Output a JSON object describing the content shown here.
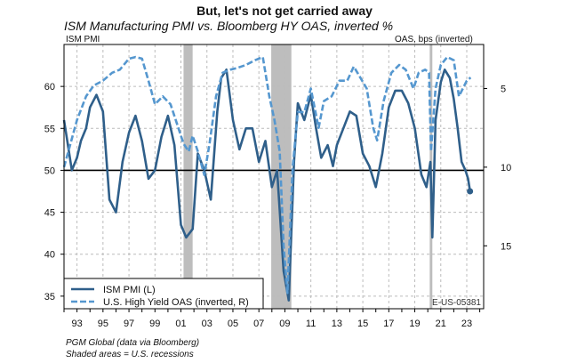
{
  "header": {
    "title": "But, let's not get carried away",
    "subtitle": "ISM Manufacturing PMI vs. Bloomberg HY OAS, inverted %",
    "left_axis_label": "ISM PMI",
    "right_axis_label": "OAS, bps (inverted)"
  },
  "footer": {
    "source": "PGM Global (data via Bloomberg)",
    "note": "Shaded areas = U.S. recessions",
    "code": "E-US-05381"
  },
  "colors": {
    "pmi": "#2f5f8a",
    "oas": "#5597cf",
    "recession": "#bdbdbd",
    "grid": "#bcbcbc",
    "frame": "#000000"
  },
  "chart_data": {
    "type": "line",
    "title": "But, let's not get carried away",
    "subtitle": "ISM Manufacturing PMI vs. Bloomberg HY OAS, inverted %",
    "x_ticks": [
      "93",
      "95",
      "97",
      "99",
      "01",
      "03",
      "05",
      "07",
      "09",
      "11",
      "13",
      "15",
      "17",
      "19",
      "21",
      "23"
    ],
    "x_tick_years": [
      1993,
      1995,
      1997,
      1999,
      2001,
      2003,
      2005,
      2007,
      2009,
      2011,
      2013,
      2015,
      2017,
      2019,
      2021,
      2023
    ],
    "xlim": [
      1992.0,
      2024.3
    ],
    "left_axis": {
      "label": "ISM PMI",
      "ylim": [
        33.5,
        65
      ],
      "ticks": [
        35,
        40,
        45,
        50,
        55,
        60
      ]
    },
    "right_axis": {
      "label": "OAS, bps (inverted)",
      "inverted": true,
      "ylim_top": 2.2,
      "ylim_bottom": 19.0,
      "ticks": [
        5,
        10,
        15
      ]
    },
    "reference_line": {
      "axis": "left",
      "value": 50
    },
    "recessions": [
      [
        2001.2,
        2001.9
      ],
      [
        2007.95,
        2009.5
      ],
      [
        2020.15,
        2020.35
      ]
    ],
    "legend": {
      "position": "bottom-left"
    },
    "end_marker": {
      "series": "ISM PMI (L)",
      "x": 2023.25,
      "y": 47.5
    },
    "series": [
      {
        "name": "ISM PMI (L)",
        "axis": "left",
        "style": "solid",
        "x": [
          1992.0,
          1992.3,
          1992.6,
          1993.0,
          1993.3,
          1993.7,
          1994.0,
          1994.5,
          1995.0,
          1995.5,
          1996.0,
          1996.5,
          1997.0,
          1997.5,
          1998.0,
          1998.5,
          1999.0,
          1999.5,
          2000.0,
          2000.5,
          2001.0,
          2001.4,
          2001.9,
          2002.3,
          2002.8,
          2003.3,
          2003.8,
          2004.1,
          2004.5,
          2005.0,
          2005.5,
          2006.0,
          2006.5,
          2007.0,
          2007.5,
          2008.0,
          2008.4,
          2008.9,
          2009.3,
          2009.7,
          2010.0,
          2010.5,
          2011.0,
          2011.4,
          2011.8,
          2012.3,
          2012.7,
          2013.0,
          2013.5,
          2014.0,
          2014.5,
          2015.0,
          2015.5,
          2016.0,
          2016.5,
          2017.0,
          2017.5,
          2018.0,
          2018.5,
          2019.0,
          2019.5,
          2019.9,
          2020.2,
          2020.35,
          2020.6,
          2021.0,
          2021.3,
          2021.7,
          2022.0,
          2022.3,
          2022.6,
          2022.9,
          2023.1,
          2023.25
        ],
        "values": [
          56.0,
          53.0,
          50.0,
          51.5,
          53.5,
          55.0,
          57.5,
          59.0,
          57.0,
          46.5,
          45.0,
          51.0,
          54.5,
          56.5,
          53.5,
          49.0,
          50.0,
          54.0,
          56.5,
          53.0,
          43.5,
          42.0,
          43.0,
          52.0,
          50.0,
          46.5,
          57.0,
          61.0,
          62.0,
          56.0,
          52.5,
          55.0,
          55.0,
          51.0,
          53.5,
          48.0,
          50.0,
          38.0,
          34.5,
          51.0,
          58.0,
          56.0,
          59.0,
          55.0,
          51.5,
          53.0,
          50.5,
          53.0,
          55.0,
          57.0,
          56.5,
          52.0,
          50.5,
          48.0,
          52.0,
          57.5,
          59.5,
          59.5,
          58.0,
          55.0,
          49.5,
          48.0,
          51.0,
          42.0,
          56.0,
          60.5,
          62.0,
          61.0,
          58.5,
          55.0,
          51.0,
          50.0,
          49.0,
          47.5
        ]
      },
      {
        "name": "U.S. High Yield OAS (inverted, R)",
        "axis": "right",
        "style": "dashed",
        "x": [
          1992.0,
          1992.5,
          1993.0,
          1993.7,
          1994.3,
          1995.0,
          1995.7,
          1996.3,
          1997.0,
          1997.5,
          1998.0,
          1998.5,
          1999.0,
          1999.6,
          2000.2,
          2000.8,
          2001.2,
          2001.6,
          2001.9,
          2002.3,
          2002.8,
          2003.2,
          2003.7,
          2004.2,
          2004.8,
          2005.3,
          2006.0,
          2006.7,
          2007.3,
          2007.8,
          2008.2,
          2008.6,
          2008.9,
          2009.2,
          2009.6,
          2010.0,
          2010.5,
          2011.0,
          2011.6,
          2012.0,
          2012.6,
          2013.2,
          2013.8,
          2014.3,
          2014.8,
          2015.3,
          2015.8,
          2016.1,
          2016.6,
          2017.2,
          2017.8,
          2018.3,
          2018.9,
          2019.3,
          2019.8,
          2020.1,
          2020.25,
          2020.6,
          2021.0,
          2021.5,
          2022.0,
          2022.4,
          2022.7,
          2023.0,
          2023.3
        ],
        "values": [
          10.0,
          8.5,
          7.0,
          5.5,
          4.8,
          4.5,
          4.0,
          3.8,
          3.1,
          3.0,
          3.1,
          4.5,
          6.0,
          5.5,
          6.0,
          7.5,
          8.5,
          9.0,
          8.0,
          9.0,
          10.5,
          8.5,
          5.5,
          4.0,
          3.8,
          3.7,
          3.5,
          3.2,
          3.0,
          5.5,
          7.0,
          9.0,
          15.0,
          18.0,
          10.0,
          6.5,
          6.5,
          5.0,
          7.5,
          5.8,
          5.5,
          4.5,
          4.5,
          3.6,
          4.3,
          5.0,
          7.5,
          8.3,
          5.8,
          4.0,
          3.5,
          3.8,
          5.0,
          4.0,
          3.8,
          4.0,
          9.0,
          5.0,
          3.5,
          3.0,
          3.2,
          5.5,
          5.0,
          4.5,
          4.3
        ]
      }
    ]
  }
}
